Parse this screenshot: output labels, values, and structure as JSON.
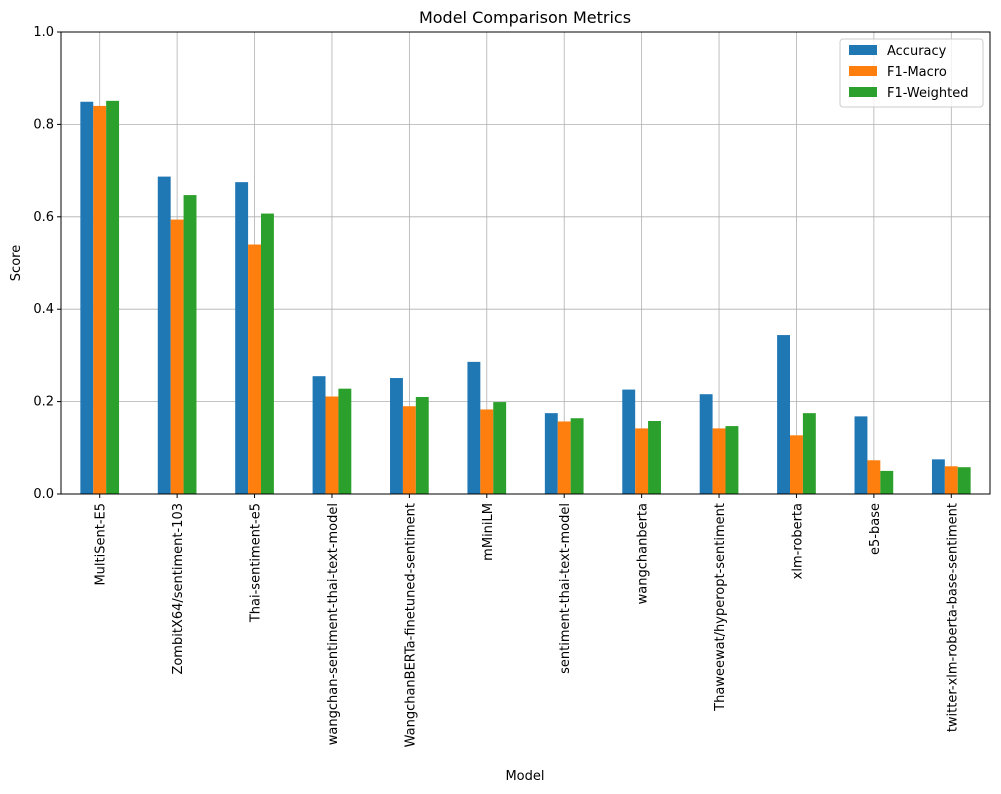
{
  "chart_data": {
    "type": "bar",
    "title": "Model Comparison Metrics",
    "xlabel": "Model",
    "ylabel": "Score",
    "ylim": [
      0,
      1.0
    ],
    "yticks": [
      "0.0",
      "0.2",
      "0.4",
      "0.6",
      "0.8",
      "1.0"
    ],
    "grid": true,
    "legend_position": "top-right",
    "categories": [
      "MultiSent-E5",
      "ZombitX64/sentiment-103",
      "Thai-sentiment-e5",
      "wangchan-sentiment-thai-text-model",
      "WangchanBERTa-finetuned-sentiment",
      "mMiniLM",
      "sentiment-thai-text-model",
      "wangchanberta",
      "Thaweewat/hyperopt-sentiment",
      "xlm-roberta",
      "e5-base",
      "twitter-xlm-roberta-base-sentiment"
    ],
    "series": [
      {
        "name": "Accuracy",
        "color": "#1f77b4",
        "values": [
          0.849,
          0.687,
          0.675,
          0.255,
          0.251,
          0.286,
          0.175,
          0.226,
          0.216,
          0.344,
          0.168,
          0.075
        ]
      },
      {
        "name": "F1-Macro",
        "color": "#ff7f0e",
        "values": [
          0.84,
          0.594,
          0.54,
          0.211,
          0.19,
          0.183,
          0.157,
          0.142,
          0.142,
          0.127,
          0.073,
          0.06
        ]
      },
      {
        "name": "F1-Weighted",
        "color": "#2ca02c",
        "values": [
          0.851,
          0.647,
          0.607,
          0.228,
          0.21,
          0.199,
          0.164,
          0.158,
          0.147,
          0.175,
          0.05,
          0.058
        ]
      }
    ]
  }
}
